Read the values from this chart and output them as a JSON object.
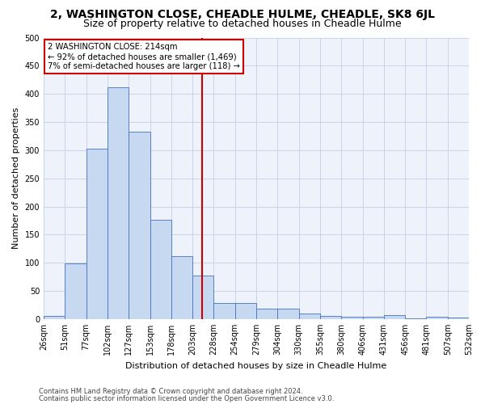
{
  "title": "2, WASHINGTON CLOSE, CHEADLE HULME, CHEADLE, SK8 6JL",
  "subtitle": "Size of property relative to detached houses in Cheadle Hulme",
  "xlabel": "Distribution of detached houses by size in Cheadle Hulme",
  "ylabel": "Number of detached properties",
  "footer_line1": "Contains HM Land Registry data © Crown copyright and database right 2024.",
  "footer_line2": "Contains public sector information licensed under the Open Government Licence v3.0.",
  "bin_labels": [
    "26sqm",
    "51sqm",
    "77sqm",
    "102sqm",
    "127sqm",
    "153sqm",
    "178sqm",
    "203sqm",
    "228sqm",
    "254sqm",
    "279sqm",
    "304sqm",
    "330sqm",
    "355sqm",
    "380sqm",
    "406sqm",
    "431sqm",
    "456sqm",
    "481sqm",
    "507sqm",
    "532sqm"
  ],
  "bar_heights": [
    5,
    99,
    302,
    412,
    333,
    176,
    112,
    77,
    29,
    29,
    18,
    18,
    10,
    6,
    4,
    4,
    7,
    2,
    4,
    3
  ],
  "bar_color": "#c6d9f0",
  "bar_edge_color": "#4472c4",
  "grid_color": "#c8d4e8",
  "annotation_text": "2 WASHINGTON CLOSE: 214sqm\n← 92% of detached houses are smaller (1,469)\n7% of semi-detached houses are larger (118) →",
  "annotation_box_edge": "#cc0000",
  "vline_color": "#cc0000",
  "ylim": [
    0,
    500
  ],
  "yticks": [
    0,
    50,
    100,
    150,
    200,
    250,
    300,
    350,
    400,
    450,
    500
  ],
  "background_color": "#eef2fa",
  "title_fontsize": 10,
  "subtitle_fontsize": 9,
  "axis_label_fontsize": 8,
  "tick_fontsize": 7,
  "footer_fontsize": 6
}
